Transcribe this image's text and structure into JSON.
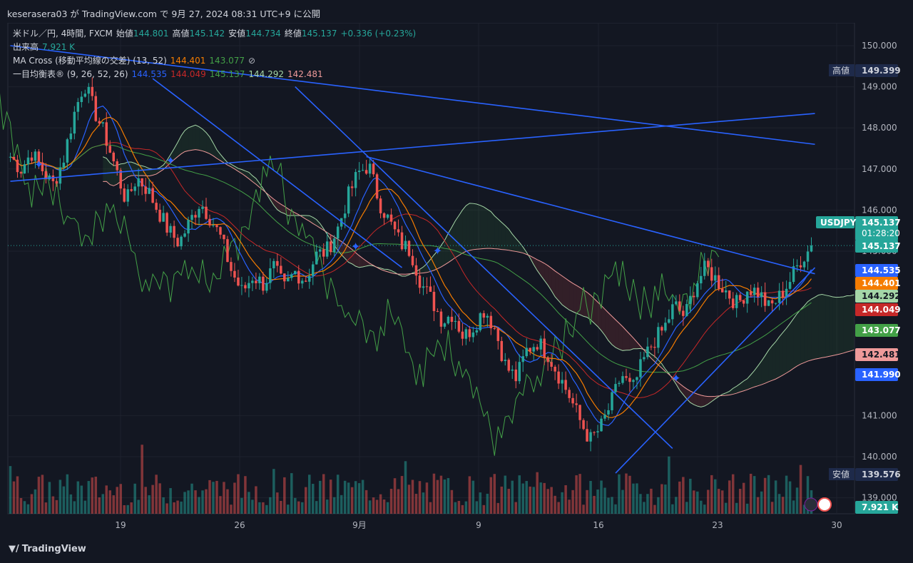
{
  "header": {
    "publish_line": "keserasera03 が TradingView.com で 9月 27, 2024 08:31 UTC+9 に公開"
  },
  "legend": {
    "symbol_line": {
      "symbol": "米ドル／円, 4時間, FXCM",
      "open_label": "始値",
      "open": "144.801",
      "high_label": "高値",
      "high": "145.142",
      "low_label": "安値",
      "low": "144.734",
      "close_label": "終値",
      "close": "145.137",
      "change": "+0.336 (+0.23%)"
    },
    "volume_line": {
      "label": "出来高",
      "value": "7.921 K"
    },
    "ma_line": {
      "label": "MA Cross (移動平均線の交差) (13, 52)",
      "v1": "144.401",
      "v2": "143.077",
      "icon": "⊘"
    },
    "ichimoku_line": {
      "label": "一目均衡表® (9, 26, 52, 26)",
      "v1": "144.535",
      "v2": "144.049",
      "v3": "145.137",
      "v4": "144.292",
      "v5": "142.481"
    }
  },
  "price_axis": {
    "ticks": [
      "150.000",
      "149.000",
      "148.000",
      "147.000",
      "146.000",
      "145.000",
      "141.000",
      "140.000",
      "139.000"
    ],
    "high_tag": {
      "label": "高値",
      "value": "149.399"
    },
    "low_tag": {
      "label": "安値",
      "value": "139.576"
    },
    "symbol_tag": {
      "symbol": "USDJPY",
      "price": "145.137",
      "countdown": "01:28:20"
    },
    "tags": [
      {
        "value": "145.137",
        "color": "#26a69a",
        "text_color": "#ffffff"
      },
      {
        "value": "144.535",
        "color": "#2962ff",
        "text_color": "#ffffff"
      },
      {
        "value": "144.401",
        "color": "#f57c00",
        "text_color": "#ffffff"
      },
      {
        "value": "144.292",
        "color": "#a5d6a7",
        "text_color": "#131722"
      },
      {
        "value": "144.049",
        "color": "#c62828",
        "text_color": "#ffffff"
      },
      {
        "value": "143.077",
        "color": "#43a047",
        "text_color": "#ffffff"
      },
      {
        "value": "142.481",
        "color": "#ef9a9a",
        "text_color": "#131722"
      },
      {
        "value": "141.990",
        "color": "#2962ff",
        "text_color": "#ffffff"
      }
    ],
    "volume_tag": "7.921 K"
  },
  "time_axis": {
    "labels": [
      "19",
      "26",
      "9月",
      "9",
      "16",
      "23",
      "30"
    ]
  },
  "footer": {
    "brand": "TradingView"
  },
  "colors": {
    "up": "#26a69a",
    "down": "#ef5350",
    "trendline": "#2962ff",
    "background": "#131722"
  },
  "chart_data": {
    "type": "candlestick",
    "symbol": "USDJPY",
    "interval": "4時間",
    "y_range": [
      139.0,
      150.0
    ],
    "scale_ticks": [
      139,
      140,
      141,
      145,
      146,
      147,
      148,
      149,
      150
    ],
    "x_categories": [
      "19",
      "26",
      "9月",
      "9",
      "16",
      "23",
      "30"
    ],
    "last": {
      "open": 144.801,
      "high": 145.142,
      "low": 144.734,
      "close": 145.137,
      "volume": "7.921 K"
    },
    "period_high": 149.399,
    "period_low": 139.576,
    "indicators": {
      "ma_cross": {
        "periods": [
          13,
          52
        ],
        "values": [
          144.401,
          143.077
        ]
      },
      "ichimoku": {
        "params": [
          9,
          26,
          52,
          26
        ],
        "values": [
          144.535,
          144.049,
          145.137,
          144.292,
          142.481
        ]
      }
    },
    "close_path": [
      147.3,
      147.0,
      147.4,
      147.0,
      146.6,
      147.2,
      148.3,
      149.1,
      148.4,
      147.8,
      147.0,
      146.2,
      146.8,
      146.5,
      146.0,
      145.5,
      145.2,
      145.7,
      146.2,
      145.8,
      145.3,
      144.5,
      144.0,
      144.4,
      144.2,
      144.6,
      144.1,
      144.5,
      144.3,
      144.9,
      145.0,
      145.5,
      146.3,
      146.9,
      147.1,
      146.2,
      145.7,
      145.2,
      145.0,
      144.2,
      143.8,
      143.3,
      143.5,
      142.9,
      143.2,
      143.6,
      143.1,
      142.2,
      141.9,
      142.6,
      142.8,
      142.5,
      142.0,
      141.5,
      140.9,
      140.4,
      140.7,
      141.3,
      142.0,
      141.6,
      142.3,
      142.8,
      143.1,
      143.7,
      143.4,
      144.2,
      144.6,
      144.3,
      144.0,
      143.7,
      144.1,
      144.0,
      143.6,
      143.9,
      144.3,
      144.8,
      145.1
    ]
  }
}
